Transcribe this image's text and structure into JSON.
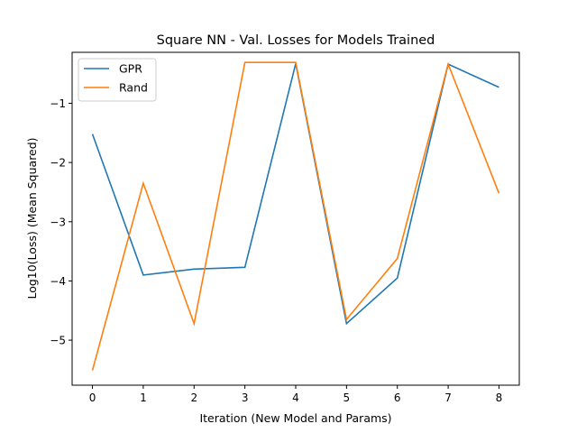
{
  "chart_data": {
    "type": "line",
    "title": "Square NN - Val. Losses for Models Trained",
    "xlabel": "Iteration (New Model and Params)",
    "ylabel": "Log10(Loss)  (Mean Squared)",
    "x": [
      0,
      1,
      2,
      3,
      4,
      5,
      6,
      7,
      8
    ],
    "xticks": [
      0,
      1,
      2,
      3,
      4,
      5,
      6,
      7,
      8
    ],
    "yticks": [
      -5,
      -4,
      -3,
      -2,
      -1
    ],
    "ytick_labels": [
      "−5",
      "−4",
      "−3",
      "−2",
      "−1"
    ],
    "xlim": [
      -0.4,
      8.4
    ],
    "ylim": [
      -5.76,
      -0.14
    ],
    "grid": false,
    "legend_position": "top-left",
    "series": [
      {
        "name": "GPR",
        "color": "#1f77b4",
        "values": [
          -1.52,
          -3.9,
          -3.8,
          -3.77,
          -0.33,
          -4.72,
          -3.95,
          -0.34,
          -0.73
        ]
      },
      {
        "name": "Rand",
        "color": "#ff7f0e",
        "values": [
          -5.51,
          -2.35,
          -4.72,
          -0.31,
          -0.31,
          -4.65,
          -3.62,
          -0.34,
          -2.52
        ]
      }
    ]
  }
}
